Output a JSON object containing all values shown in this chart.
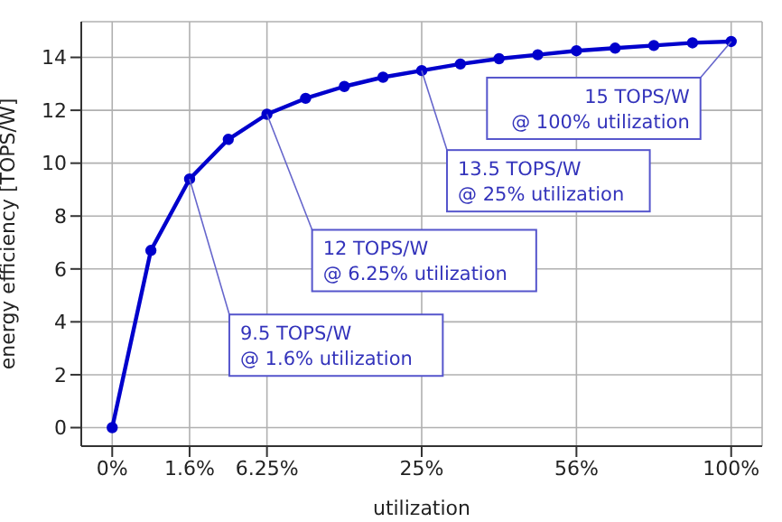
{
  "chart_data": {
    "type": "line",
    "xlabel": "utilization",
    "ylabel": "energy efficiency [TOPS/W]",
    "categories": [
      "0%",
      null,
      "1.6%",
      null,
      "6.25%",
      null,
      null,
      null,
      "25%",
      null,
      null,
      null,
      "56%",
      null,
      null,
      null,
      "100%"
    ],
    "series": [
      {
        "color": "#0000cc",
        "values": [
          0,
          6.7,
          9.4,
          10.9,
          11.85,
          12.45,
          12.9,
          13.25,
          13.5,
          13.75,
          13.95,
          14.1,
          14.25,
          14.35,
          14.45,
          14.55,
          14.6
        ]
      }
    ],
    "ylim": [
      -0.7,
      15.35
    ],
    "yticks": [
      0,
      2,
      4,
      6,
      8,
      10,
      12,
      14
    ],
    "grid": true,
    "marker": "circle",
    "line_style": "solid",
    "annotations": [
      {
        "text": "9.5 TOPS/W\n@ 1.6% utilization",
        "x": "1.6%",
        "y": 9.4
      },
      {
        "text": "12 TOPS/W\n@ 6.25% utilization",
        "x": "6.25%",
        "y": 11.85
      },
      {
        "text": "13.5 TOPS/W\n@ 25% utilization",
        "x": "25%",
        "y": 13.5
      },
      {
        "text": "15 TOPS/W\n@ 100% utilization",
        "x": "100%",
        "y": 14.6
      }
    ]
  }
}
